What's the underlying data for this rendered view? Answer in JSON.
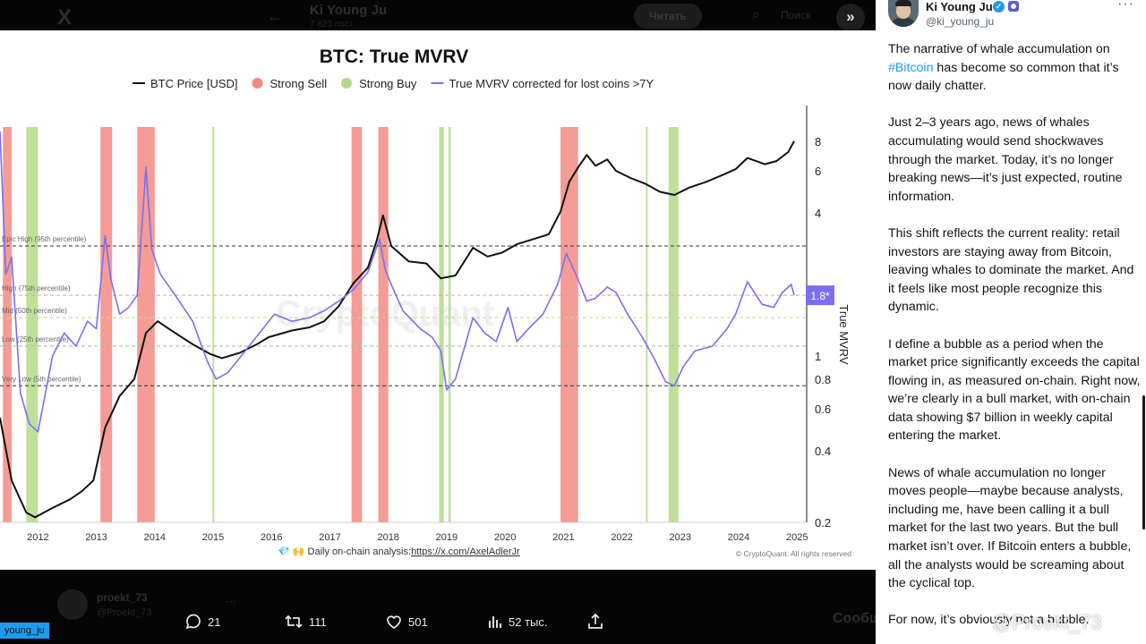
{
  "background": {
    "x_logo": "X",
    "back_arrow": "←",
    "profile_name": "Ki Young Ju",
    "profile_sub": "7 623 пост",
    "follow_label": "Читать",
    "search_placeholder": "Поиск",
    "reply_name": "proekt_73",
    "reply_handle": "@Proekt_73",
    "reply_more": "···",
    "compose_label": "Сообщ"
  },
  "expand_button": "»",
  "chart": {
    "title": "BTC: True MVRV",
    "legend": [
      {
        "label": "BTC Price [USD]",
        "color": "#111111",
        "shape": "line"
      },
      {
        "label": "Strong Sell",
        "color": "#f28b82",
        "shape": "dot"
      },
      {
        "label": "Strong Buy",
        "color": "#b5d98a",
        "shape": "dot"
      },
      {
        "label": "True MVRV corrected for lost coins >7Y",
        "color": "#7b6ff0",
        "shape": "line"
      }
    ],
    "band_labels": [
      "Epic High (95th percentile)",
      "High (75th percentile)",
      "Mid (50th percentile)",
      "Low (25th percentile)",
      "Very Low (5th percentile)"
    ],
    "right_axis_label": "True MVRV",
    "current_value": "1.8*",
    "watermark": "CryptoQuant",
    "footer_left": "💎 🙌  Daily on-chain analysis: ",
    "footer_link": "https://x.com/AxelAdlerJr",
    "footer_right": "© CryptoQuant. All rights reserved"
  },
  "chart_data": {
    "type": "line",
    "title": "BTC: True MVRV",
    "xlabel": "",
    "ylabel": "True MVRV",
    "x_ticks": [
      "2012",
      "2013",
      "2014",
      "2015",
      "2016",
      "2017",
      "2018",
      "2019",
      "2020",
      "2021",
      "2022",
      "2023",
      "2024",
      "2025"
    ],
    "y_ticks": [
      "8",
      "6",
      "4",
      "1",
      "0.8",
      "0.6",
      "0.4",
      "0.2"
    ],
    "y_scale": "log",
    "ylim": [
      0.2,
      10
    ],
    "current_mvrv": 1.8,
    "series": [
      {
        "name": "BTC Price [USD]",
        "color": "#111111",
        "x": [
          2011.4,
          2011.6,
          2011.85,
          2012.0,
          2012.3,
          2012.6,
          2012.8,
          2013.0,
          2013.2,
          2013.45,
          2013.7,
          2013.9,
          2014.1,
          2014.4,
          2014.7,
          2015.0,
          2015.2,
          2015.5,
          2015.8,
          2016.0,
          2016.4,
          2016.7,
          2016.95,
          2017.2,
          2017.45,
          2017.7,
          2017.85,
          2017.96,
          2018.1,
          2018.4,
          2018.7,
          2018.95,
          2019.2,
          2019.5,
          2019.75,
          2020.0,
          2020.25,
          2020.5,
          2020.8,
          2021.0,
          2021.15,
          2021.3,
          2021.45,
          2021.6,
          2021.8,
          2021.95,
          2022.2,
          2022.45,
          2022.7,
          2022.95,
          2023.2,
          2023.5,
          2023.8,
          2024.0,
          2024.2,
          2024.5,
          2024.7,
          2024.9,
          2025.0
        ],
        "y": [
          0.55,
          0.3,
          0.22,
          0.21,
          0.23,
          0.25,
          0.27,
          0.3,
          0.5,
          0.68,
          0.8,
          1.25,
          1.4,
          1.25,
          1.12,
          1.02,
          0.98,
          1.03,
          1.12,
          1.2,
          1.28,
          1.32,
          1.4,
          1.62,
          2.02,
          2.35,
          3.05,
          3.9,
          2.9,
          2.5,
          2.45,
          2.12,
          2.18,
          2.85,
          2.62,
          2.72,
          2.95,
          3.08,
          3.25,
          4.05,
          5.4,
          6.2,
          7.0,
          6.3,
          6.7,
          6.0,
          5.6,
          5.3,
          4.9,
          4.75,
          5.1,
          5.4,
          5.8,
          6.1,
          6.8,
          6.4,
          6.6,
          7.2,
          8.0
        ]
      },
      {
        "name": "True MVRV corrected for lost coins >7Y",
        "color": "#7b6ff0",
        "x": [
          2011.4,
          2011.5,
          2011.6,
          2011.75,
          2011.9,
          2012.05,
          2012.3,
          2012.5,
          2012.7,
          2012.9,
          2013.05,
          2013.2,
          2013.3,
          2013.45,
          2013.6,
          2013.75,
          2013.9,
          2014.0,
          2014.15,
          2014.4,
          2014.7,
          2014.95,
          2015.1,
          2015.3,
          2015.6,
          2015.9,
          2016.1,
          2016.4,
          2016.7,
          2016.95,
          2017.2,
          2017.45,
          2017.7,
          2017.9,
          2018.0,
          2018.1,
          2018.3,
          2018.6,
          2018.8,
          2018.95,
          2019.05,
          2019.2,
          2019.5,
          2019.7,
          2019.9,
          2020.1,
          2020.25,
          2020.45,
          2020.7,
          2020.95,
          2021.1,
          2021.3,
          2021.45,
          2021.6,
          2021.8,
          2021.95,
          2022.15,
          2022.4,
          2022.6,
          2022.8,
          2022.95,
          2023.1,
          2023.3,
          2023.6,
          2023.85,
          2024.0,
          2024.2,
          2024.45,
          2024.65,
          2024.8,
          2024.95,
          2025.0
        ],
        "y": [
          8.8,
          2.2,
          2.6,
          0.7,
          0.52,
          0.48,
          1.0,
          1.25,
          1.1,
          1.4,
          1.3,
          3.2,
          2.1,
          1.5,
          1.6,
          1.8,
          6.2,
          2.8,
          2.2,
          1.8,
          1.4,
          0.95,
          0.8,
          0.85,
          1.05,
          1.3,
          1.5,
          1.4,
          1.45,
          1.55,
          1.7,
          1.9,
          2.25,
          3.1,
          2.3,
          2.0,
          1.55,
          1.3,
          1.2,
          1.05,
          0.72,
          0.8,
          1.45,
          1.25,
          1.15,
          1.6,
          1.15,
          1.3,
          1.5,
          2.0,
          2.7,
          2.1,
          1.7,
          1.75,
          1.95,
          1.85,
          1.5,
          1.2,
          0.98,
          0.78,
          0.75,
          0.9,
          1.05,
          1.1,
          1.3,
          1.5,
          2.05,
          1.65,
          1.6,
          1.85,
          2.0,
          1.8
        ]
      }
    ],
    "strong_sell_periods": [
      [
        2011.45,
        2011.6
      ],
      [
        2013.12,
        2013.32
      ],
      [
        2013.75,
        2014.05
      ],
      [
        2017.42,
        2017.6
      ],
      [
        2017.88,
        2018.05
      ],
      [
        2021.0,
        2021.3
      ]
    ],
    "strong_buy_periods": [
      [
        2011.85,
        2012.05
      ],
      [
        2015.04,
        2015.07
      ],
      [
        2018.92,
        2019.0
      ],
      [
        2019.08,
        2019.12
      ],
      [
        2022.46,
        2022.49
      ],
      [
        2022.85,
        2023.02
      ]
    ],
    "percentile_bands": [
      {
        "label": "Epic High (95th percentile)",
        "value": 2.9
      },
      {
        "label": "High (75th percentile)",
        "value": 1.8
      },
      {
        "label": "Mid (50th percentile)",
        "value": 1.45
      },
      {
        "label": "Low (25th percentile)",
        "value": 1.1
      },
      {
        "label": "Very Low (5th percentile)",
        "value": 0.75
      }
    ],
    "legend_position": "top"
  },
  "actions": {
    "replies": "21",
    "retweets": "111",
    "likes": "501",
    "views": "52 тыс."
  },
  "handle_tag": "young_ju",
  "tweet": {
    "author_name": "Ki Young Ju",
    "author_handle": "@ki_young_ju",
    "more": "···",
    "p1_pre": "The narrative of whale accumulation on ",
    "p1_tag": "#Bitcoin",
    "p1_post": " has become so common that it’s now daily chatter.",
    "p2": "Just 2–3 years ago, news of whales accumulating would send shockwaves through the market. Today, it’s no longer breaking news—it’s just expected, routine information.",
    "p3": "This shift reflects the current reality: retail investors are staying away from Bitcoin, leaving whales to dominate the market. And it feels like most people recognize this dynamic.",
    "p4": "I define a bubble as a period when the market price significantly exceeds the capital flowing in, as measured on-chain. Right now, we’re clearly in a bull market, with on-chain data showing $7 billion in weekly capital entering the market.",
    "p5": "News of whale accumulation no longer moves people—maybe because analysts, including me, have been calling it a bull market for the last two years. But the bull market isn’t over. If Bitcoin enters a bubble, all the analysts would be screaming about the cyclical top.",
    "p6": "For now, it’s obviously not a bubble."
  },
  "watermark": "@Proekt_73"
}
